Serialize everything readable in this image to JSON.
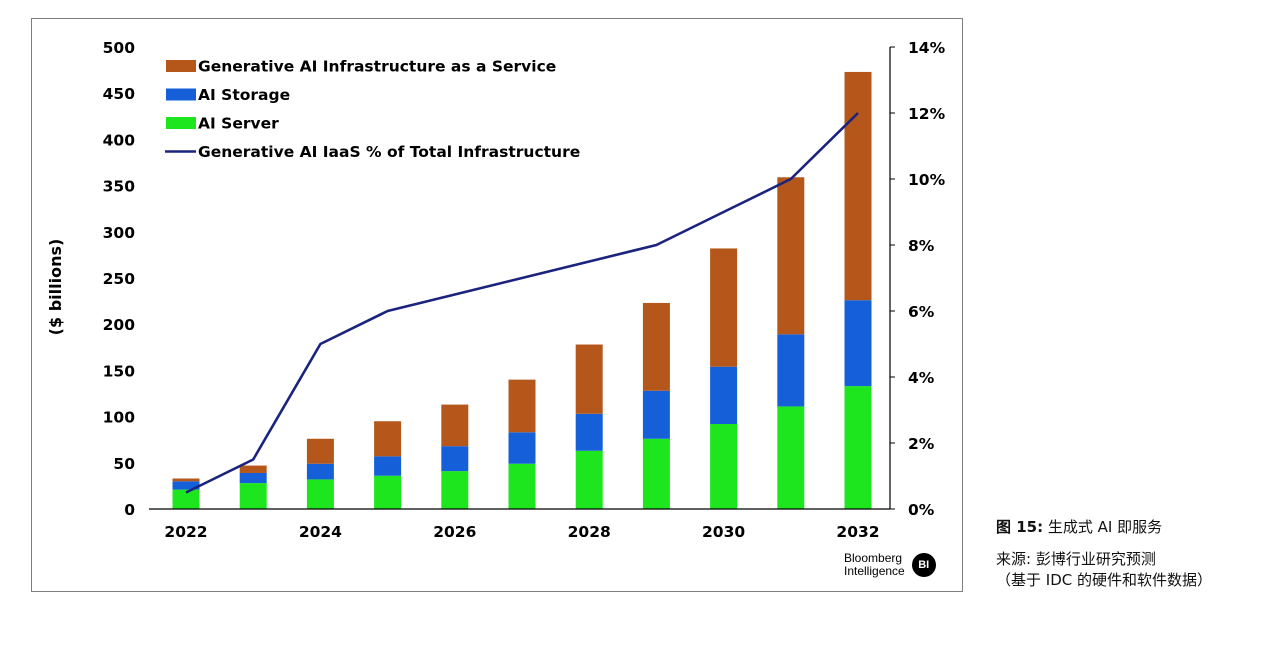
{
  "chart_data": {
    "type": "bar",
    "stacked": true,
    "categories": [
      "2022",
      "2023",
      "2024",
      "2025",
      "2026",
      "2027",
      "2028",
      "2029",
      "2030",
      "2031",
      "2032"
    ],
    "x_tick_labels": [
      "2022",
      "2024",
      "2026",
      "2028",
      "2030",
      "2032"
    ],
    "series": [
      {
        "name": "AI Server",
        "color": "#1ee61e",
        "axis": "left",
        "values": [
          21,
          28,
          32,
          36,
          41,
          49,
          63,
          76,
          92,
          111,
          133
        ]
      },
      {
        "name": "AI Storage",
        "color": "#1560d8",
        "axis": "left",
        "values": [
          9,
          11,
          17,
          21,
          27,
          34,
          40,
          52,
          62,
          78,
          93
        ]
      },
      {
        "name": "Generative AI Infrastructure as a Service",
        "color": "#b5571b",
        "axis": "left",
        "values": [
          3,
          8,
          27,
          38,
          45,
          57,
          75,
          95,
          128,
          170,
          247
        ]
      },
      {
        "name": "Generative AI IaaS % of Total Infrastructure",
        "type": "line",
        "color": "#1a237e",
        "axis": "right",
        "values": [
          0.5,
          1.5,
          5,
          6,
          6.5,
          7,
          7.5,
          8,
          9,
          10,
          12
        ]
      }
    ],
    "legend": [
      "Generative AI Infrastructure as a Service",
      "AI Storage",
      "AI Server",
      "Generative AI IaaS % of Total Infrastructure"
    ],
    "legend_position": "top-left",
    "ylabel": "($ billions)",
    "ylim": [
      0,
      500
    ],
    "y_ticks": [
      "0",
      "50",
      "100",
      "150",
      "200",
      "250",
      "300",
      "350",
      "400",
      "450",
      "500"
    ],
    "y2lim": [
      0,
      14
    ],
    "y2_ticks": [
      "0%",
      "2%",
      "4%",
      "6%",
      "8%",
      "10%",
      "12%",
      "14%"
    ],
    "grid": false
  },
  "branding": {
    "line1": "Bloomberg",
    "line2": "Intelligence",
    "badge": "BI"
  },
  "caption": {
    "figure_label": "图 15:",
    "figure_title": "生成式 AI 即服务",
    "source_line1": "来源: 彭博行业研究预测",
    "source_line2": "（基于 IDC 的硬件和软件数据）"
  }
}
